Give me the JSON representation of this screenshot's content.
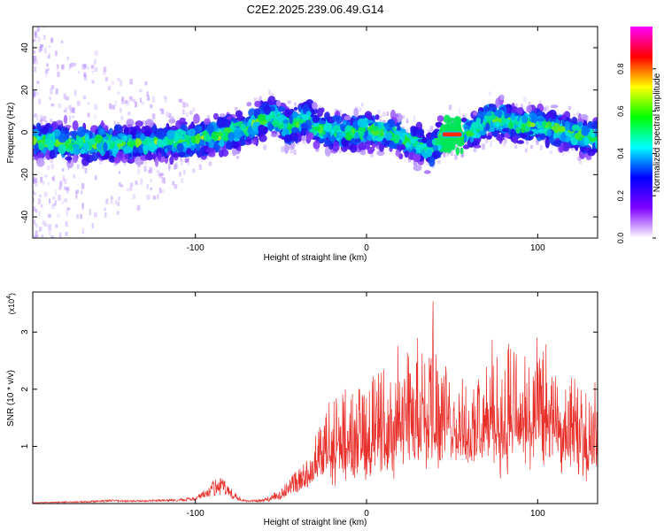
{
  "title": "C2E2.2025.239.06.49.G14",
  "colors": {
    "snr_line": "#e8302b",
    "frame": "#000000",
    "background": "#ffffff"
  },
  "colorbar": {
    "label": "Normalized spectral amplitude",
    "range": [
      0,
      1
    ],
    "ticks": [
      "0.0",
      "0.2",
      "0.4",
      "0.6",
      "0.8"
    ],
    "colormap": [
      "#ff00ff",
      "#ff0000",
      "#ffff00",
      "#00ff00",
      "#00ffff",
      "#0000ff",
      "#8000ff",
      "#ffffff"
    ]
  },
  "chart_data": [
    {
      "type": "heatmap",
      "xlabel": "Height of straight line (km)",
      "ylabel": "Frequency (Hz)",
      "xlim": [
        -195,
        135
      ],
      "ylim": [
        -50,
        50
      ],
      "xticks": [
        "-100",
        "0",
        "100"
      ],
      "yticks": [
        "40",
        "20",
        "0",
        "-20",
        "-40"
      ],
      "ridge": {
        "x": [
          -195,
          -170,
          -150,
          -130,
          -110,
          -90,
          -70,
          -60,
          -55,
          -50,
          -45,
          -40,
          -35,
          -30,
          -20,
          -10,
          0,
          10,
          20,
          25,
          30,
          35,
          38,
          42,
          46,
          50,
          55,
          60,
          65,
          70,
          80,
          90,
          100,
          110,
          120,
          130,
          135
        ],
        "y": [
          -4,
          -5,
          -5,
          -5,
          -4,
          -2,
          2,
          6,
          8,
          5,
          2,
          4,
          8,
          2,
          1,
          -1,
          1,
          0,
          -2,
          -4,
          -6,
          -8,
          -8,
          -4,
          -1,
          -1,
          -1,
          0,
          2,
          6,
          6,
          3,
          4,
          2,
          0,
          -3,
          -2
        ]
      },
      "strong_segment": {
        "x": [
          44,
          56
        ],
        "y": -1
      }
    },
    {
      "type": "line",
      "xlabel": "Height of straight line (km)",
      "ylabel": "SNR (10 * v/v)",
      "axis_multiplier": "(x10",
      "axis_multiplier_exponent": "4",
      "axis_multiplier_close": ")",
      "xlim": [
        -195,
        135
      ],
      "ylim": [
        0,
        3.7
      ],
      "xticks": [
        "-100",
        "0",
        "100"
      ],
      "yticks": [
        "3",
        "2",
        "1"
      ],
      "series": [
        {
          "envelope_x": [
            -195,
            -170,
            -150,
            -130,
            -110,
            -100,
            -95,
            -90,
            -85,
            -80,
            -75,
            -70,
            -60,
            -50,
            -40,
            -30,
            -20,
            -10,
            0,
            10,
            20,
            30,
            35,
            38,
            40,
            45,
            50,
            55,
            60,
            65,
            70,
            75,
            80,
            85,
            90,
            95,
            100,
            105,
            110,
            115,
            120,
            125,
            130,
            135
          ],
          "base": [
            0.02,
            0.03,
            0.05,
            0.06,
            0.08,
            0.1,
            0.2,
            0.25,
            0.3,
            0.2,
            0.1,
            0.05,
            0.05,
            0.15,
            0.4,
            0.7,
            0.8,
            0.9,
            1.0,
            1.1,
            1.2,
            1.3,
            1.4,
            1.3,
            1.4,
            1.3,
            1.5,
            1.6,
            1.4,
            1.0,
            1.2,
            1.3,
            1.1,
            1.2,
            1.3,
            1.1,
            1.2,
            1.3,
            1.2,
            1.0,
            1.3,
            1.1,
            1.0,
            1.2
          ],
          "spread": [
            0.02,
            0.04,
            0.07,
            0.05,
            0.08,
            0.1,
            0.25,
            0.45,
            0.55,
            0.35,
            0.15,
            0.05,
            0.1,
            0.3,
            0.7,
            1.0,
            1.4,
            1.6,
            1.7,
            1.8,
            2.0,
            2.3,
            2.6,
            3.7,
            2.2,
            1.9,
            1.6,
            1.4,
            1.2,
            1.8,
            2.0,
            2.2,
            2.3,
            2.1,
            2.0,
            1.9,
            2.1,
            2.0,
            1.8,
            1.5,
            1.6,
            1.4,
            1.5,
            1.3
          ]
        }
      ]
    }
  ]
}
